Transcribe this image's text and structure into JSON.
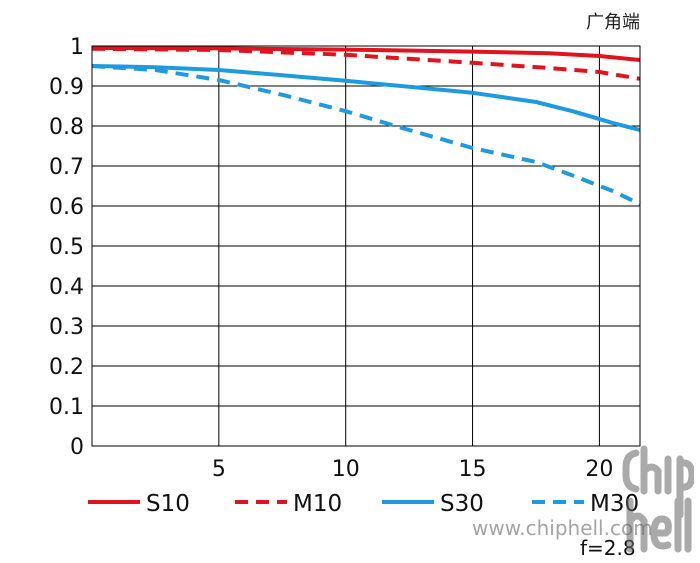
{
  "header": {
    "corner_label": "广角端"
  },
  "footer": {
    "aperture": "f=2.8"
  },
  "watermark": {
    "url": "www.chiphell.com",
    "logo_text": "chip hell"
  },
  "chart_data": {
    "type": "line",
    "title": "",
    "xlabel": "",
    "ylabel": "",
    "xlim": [
      0,
      21.6
    ],
    "ylim": [
      0,
      1
    ],
    "grid": true,
    "legend_position": "bottom",
    "x_ticks": [
      5,
      10,
      15,
      20
    ],
    "x_tick_labels": [
      "5",
      "10",
      "15",
      "20"
    ],
    "y_ticks": [
      0,
      0.1,
      0.2,
      0.3,
      0.4,
      0.5,
      0.6,
      0.7,
      0.8,
      0.9,
      1
    ],
    "y_tick_labels": [
      "0",
      "0.1",
      "0.2",
      "0.3",
      "0.4",
      "0.5",
      "0.6",
      "0.7",
      "0.8",
      "0.9",
      "1"
    ],
    "series": [
      {
        "name": "S10",
        "color": "#e0141e",
        "dashed": false,
        "x": [
          0,
          5,
          10,
          15,
          18,
          20,
          21.6
        ],
        "y": [
          0.995,
          0.994,
          0.991,
          0.986,
          0.982,
          0.975,
          0.965
        ]
      },
      {
        "name": "M10",
        "color": "#e0141e",
        "dashed": true,
        "x": [
          0,
          5,
          10,
          12,
          15,
          18,
          20,
          21.6
        ],
        "y": [
          0.993,
          0.99,
          0.978,
          0.97,
          0.958,
          0.945,
          0.935,
          0.918
        ]
      },
      {
        "name": "S30",
        "color": "#1e9be0",
        "dashed": false,
        "x": [
          0,
          2.5,
          5,
          7.5,
          10,
          12.5,
          15,
          17.5,
          19,
          20.5,
          21.6
        ],
        "y": [
          0.95,
          0.947,
          0.94,
          0.927,
          0.913,
          0.898,
          0.883,
          0.86,
          0.836,
          0.808,
          0.79
        ]
      },
      {
        "name": "M30",
        "color": "#1e9be0",
        "dashed": true,
        "x": [
          0,
          2.5,
          5,
          7.5,
          10,
          12.5,
          15,
          17.5,
          19,
          20.5,
          21.6
        ],
        "y": [
          0.95,
          0.94,
          0.915,
          0.878,
          0.837,
          0.79,
          0.745,
          0.71,
          0.675,
          0.638,
          0.605
        ]
      }
    ]
  }
}
